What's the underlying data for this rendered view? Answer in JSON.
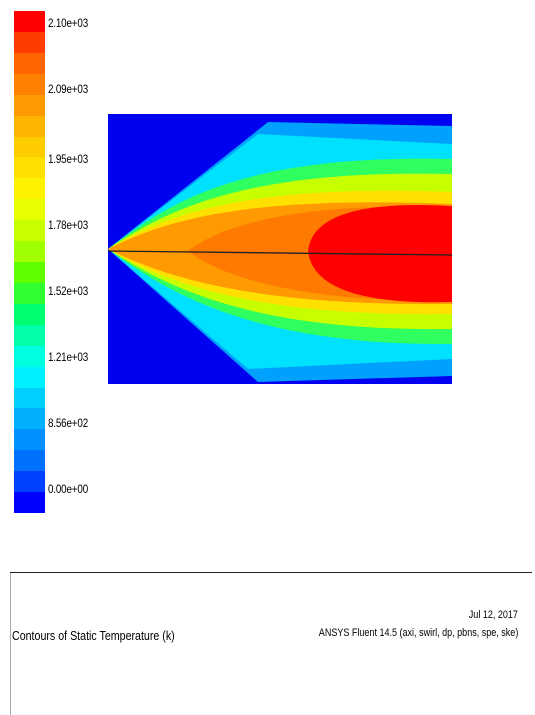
{
  "colorbar": {
    "labels": [
      "2.10e+03",
      "2.09e+03",
      "1.95e+03",
      "1.78e+03",
      "1.52e+03",
      "1.21e+03",
      "8.56e+02",
      "0.00e+00"
    ],
    "colors": [
      "#ff0000",
      "#ff3c00",
      "#ff6400",
      "#ff8000",
      "#ff9a00",
      "#ffb400",
      "#ffcc00",
      "#ffe000",
      "#fff200",
      "#e8ff00",
      "#c8ff00",
      "#a0ff00",
      "#60ff00",
      "#30ff30",
      "#00ff70",
      "#00ffa8",
      "#00ffe0",
      "#00f0ff",
      "#00d0ff",
      "#00b0ff",
      "#0090ff",
      "#0070ff",
      "#0040ff",
      "#0000ff"
    ]
  },
  "footer": {
    "title": "Contours of Static Temperature (k)",
    "date": "Jul 12, 2017",
    "solver": "ANSYS Fluent 14.5 (axi, swirl, dp, pbns, spe, ske)"
  }
}
